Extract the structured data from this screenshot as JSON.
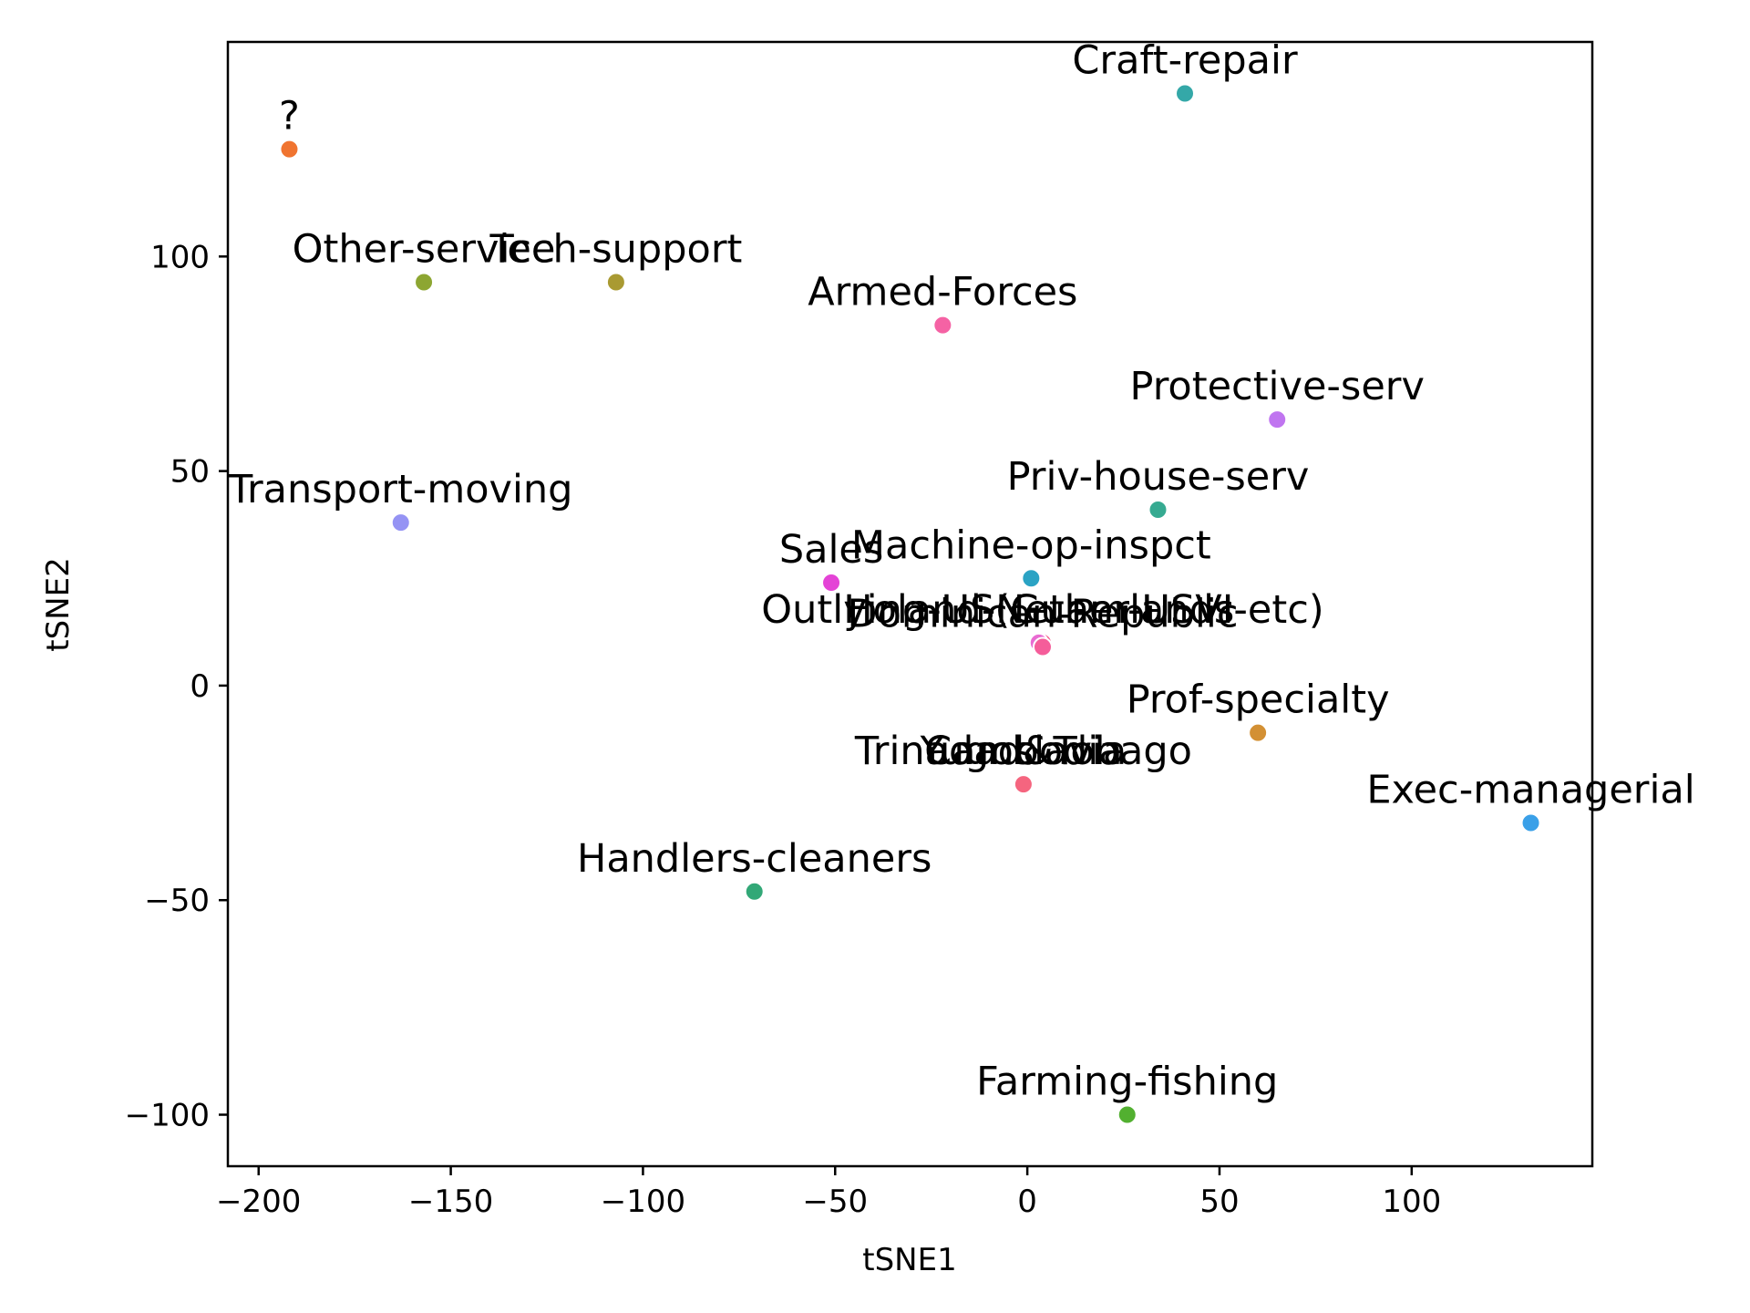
{
  "chart_data": {
    "type": "scatter",
    "xlabel": "tSNE1",
    "ylabel": "tSNE2",
    "xlim": [
      -208,
      147
    ],
    "ylim": [
      -112,
      150
    ],
    "xticks": [
      -200,
      -150,
      -100,
      -50,
      0,
      50,
      100
    ],
    "yticks": [
      -100,
      -50,
      0,
      50,
      100
    ],
    "xtick_labels": [
      "−200",
      "−150",
      "−100",
      "−50",
      "0",
      "50",
      "100"
    ],
    "ytick_labels": [
      "−100",
      "−50",
      "0",
      "50",
      "100"
    ],
    "grid": false,
    "legend": "none",
    "points": [
      {
        "label": "?",
        "x": -192,
        "y": 125,
        "color": "#f07430"
      },
      {
        "label": "Craft-repair",
        "x": 41,
        "y": 138,
        "color": "#34a8a8"
      },
      {
        "label": "Other-service",
        "x": -157,
        "y": 94,
        "color": "#8da632"
      },
      {
        "label": "Tech-support",
        "x": -107,
        "y": 94,
        "color": "#a99a32"
      },
      {
        "label": "Armed-Forces",
        "x": -22,
        "y": 84,
        "color": "#f562a4"
      },
      {
        "label": "Protective-serv",
        "x": 65,
        "y": 62,
        "color": "#c075f0"
      },
      {
        "label": "Priv-house-serv",
        "x": 34,
        "y": 41,
        "color": "#36aa91"
      },
      {
        "label": "Transport-moving",
        "x": -163,
        "y": 38,
        "color": "#9593f4"
      },
      {
        "label": "Machine-op-inspct",
        "x": 1,
        "y": 25,
        "color": "#2ba3c4"
      },
      {
        "label": "Sales",
        "x": -51,
        "y": 24,
        "color": "#e443d6"
      },
      {
        "label": "Outlying-US(Guam-USVI-etc)",
        "x": 4,
        "y": 10,
        "color": "#f45a8a"
      },
      {
        "label": "Holand-Netherlands",
        "x": 3,
        "y": 10,
        "color": "#e96bd2"
      },
      {
        "label": "Dominican-Republic",
        "x": 4,
        "y": 9,
        "color": "#f55d9a"
      },
      {
        "label": "Prof-specialty",
        "x": 60,
        "y": -11,
        "color": "#d39034"
      },
      {
        "label": "Trinadad&Tobago",
        "x": -1,
        "y": -23,
        "color": "#f5657f"
      },
      {
        "label": "Yugoslavia",
        "x": -1,
        "y": -23,
        "color": "#f5657f"
      },
      {
        "label": "Cambodia",
        "x": -1,
        "y": -23,
        "color": "#f5657f"
      },
      {
        "label": "Exec-managerial",
        "x": 131,
        "y": -32,
        "color": "#3aa0e8"
      },
      {
        "label": "Handlers-cleaners",
        "x": -71,
        "y": -48,
        "color": "#32a877"
      },
      {
        "label": "Farming-fishing",
        "x": 26,
        "y": -100,
        "color": "#52b030"
      }
    ]
  }
}
